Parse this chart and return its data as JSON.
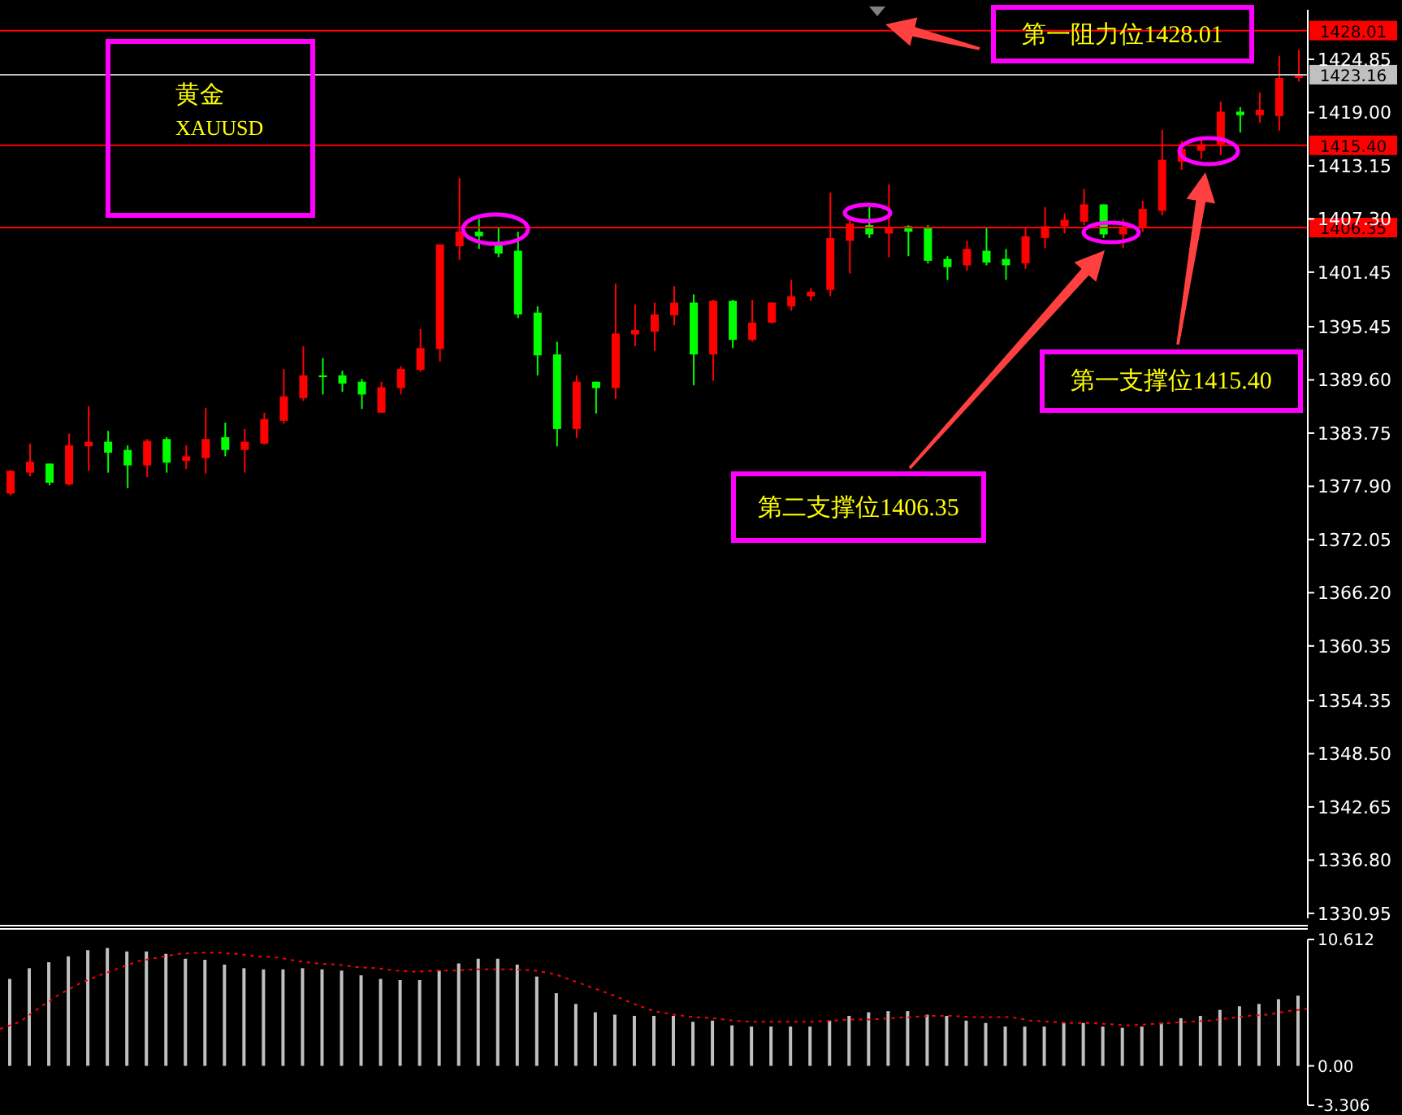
{
  "chart_data": [
    {
      "type": "candlestick",
      "categories": [
        null,
        null,
        null,
        null,
        null,
        null,
        null,
        null,
        null,
        null,
        null,
        null,
        null,
        null,
        null,
        null,
        null,
        null,
        null,
        null,
        null,
        null,
        null,
        null,
        null,
        null,
        null,
        null,
        null,
        null,
        null,
        null,
        null,
        null,
        null,
        null,
        null,
        null,
        null,
        null,
        null,
        null,
        null,
        null,
        null,
        null,
        null,
        null,
        null,
        null,
        null,
        null,
        null,
        null,
        null,
        null,
        null,
        null,
        null,
        null,
        null,
        null,
        null,
        null,
        null,
        null,
        null
      ],
      "ohlc": [
        [
          1377.1,
          1379.7,
          1376.9,
          1379.6
        ],
        [
          1379.4,
          1382.6,
          1379.0,
          1380.6
        ],
        [
          1380.4,
          1380.4,
          1378.0,
          1378.3
        ],
        [
          1378.1,
          1383.7,
          1378.0,
          1382.4
        ],
        [
          1382.3,
          1386.7,
          1379.6,
          1382.8
        ],
        [
          1382.8,
          1384.0,
          1379.4,
          1381.6
        ],
        [
          1381.9,
          1382.4,
          1377.7,
          1380.2
        ],
        [
          1380.2,
          1383.1,
          1378.9,
          1382.9
        ],
        [
          1383.1,
          1383.3,
          1379.4,
          1380.5
        ],
        [
          1380.7,
          1382.4,
          1379.8,
          1381.2
        ],
        [
          1381.0,
          1386.5,
          1379.3,
          1383.1
        ],
        [
          1383.3,
          1384.9,
          1381.2,
          1381.9
        ],
        [
          1381.9,
          1384.2,
          1379.4,
          1382.8
        ],
        [
          1382.6,
          1386.0,
          1382.5,
          1385.3
        ],
        [
          1385.1,
          1390.8,
          1384.8,
          1387.8
        ],
        [
          1387.6,
          1393.3,
          1387.3,
          1390.1
        ],
        [
          1390.1,
          1392.0,
          1388.0,
          1389.9
        ],
        [
          1390.1,
          1390.6,
          1388.3,
          1389.2
        ],
        [
          1389.4,
          1389.7,
          1386.4,
          1388.0
        ],
        [
          1386.0,
          1389.4,
          1386.0,
          1388.8
        ],
        [
          1388.7,
          1391.1,
          1388.0,
          1390.8
        ],
        [
          1390.7,
          1395.2,
          1390.5,
          1393.1
        ],
        [
          1393.0,
          1404.5,
          1391.6,
          1404.5
        ],
        [
          1404.3,
          1411.8,
          1402.8,
          1405.9
        ],
        [
          1405.9,
          1407.3,
          1404.0,
          1405.4
        ],
        [
          1404.6,
          1406.3,
          1403.1,
          1403.5
        ],
        [
          1403.8,
          1405.9,
          1396.4,
          1396.8
        ],
        [
          1397.0,
          1397.7,
          1390.1,
          1392.3
        ],
        [
          1392.4,
          1393.8,
          1382.3,
          1384.2
        ],
        [
          1384.2,
          1390.1,
          1383.2,
          1389.4
        ],
        [
          1389.4,
          1389.4,
          1385.9,
          1388.7
        ],
        [
          1388.7,
          1400.2,
          1387.5,
          1394.7
        ],
        [
          1394.6,
          1397.9,
          1393.3,
          1395.1
        ],
        [
          1394.9,
          1398.1,
          1392.8,
          1396.8
        ],
        [
          1396.7,
          1399.9,
          1395.6,
          1398.1
        ],
        [
          1398.1,
          1399.0,
          1389.0,
          1392.4
        ],
        [
          1392.4,
          1398.4,
          1389.5,
          1398.3
        ],
        [
          1398.3,
          1398.4,
          1393.1,
          1394.0
        ],
        [
          1394.0,
          1398.4,
          1393.8,
          1395.9
        ],
        [
          1395.9,
          1398.1,
          1395.8,
          1398.1
        ],
        [
          1397.7,
          1400.6,
          1397.2,
          1398.8
        ],
        [
          1398.8,
          1399.7,
          1398.3,
          1399.3
        ],
        [
          1399.5,
          1410.2,
          1398.8,
          1405.2
        ],
        [
          1404.9,
          1407.2,
          1401.3,
          1406.8
        ],
        [
          1406.6,
          1408.6,
          1405.2,
          1405.6
        ],
        [
          1405.7,
          1411.1,
          1403.1,
          1406.3
        ],
        [
          1406.5,
          1406.6,
          1403.2,
          1405.9
        ],
        [
          1406.3,
          1406.6,
          1402.4,
          1402.7
        ],
        [
          1402.9,
          1403.2,
          1400.6,
          1402.0
        ],
        [
          1402.2,
          1404.9,
          1401.6,
          1404.0
        ],
        [
          1403.8,
          1406.3,
          1402.2,
          1402.5
        ],
        [
          1402.9,
          1404.0,
          1400.6,
          1402.2
        ],
        [
          1402.4,
          1406.3,
          1401.8,
          1405.4
        ],
        [
          1405.2,
          1408.6,
          1404.1,
          1406.5
        ],
        [
          1406.5,
          1407.9,
          1405.7,
          1407.2
        ],
        [
          1407.0,
          1410.6,
          1406.6,
          1408.9
        ],
        [
          1408.9,
          1408.9,
          1405.2,
          1405.6
        ],
        [
          1405.6,
          1407.3,
          1404.1,
          1406.3
        ],
        [
          1406.3,
          1409.3,
          1405.9,
          1408.4
        ],
        [
          1408.2,
          1417.1,
          1407.7,
          1413.8
        ],
        [
          1413.6,
          1415.9,
          1412.7,
          1415.0
        ],
        [
          1414.8,
          1416.2,
          1413.9,
          1415.5
        ],
        [
          1415.5,
          1420.2,
          1414.3,
          1419.1
        ],
        [
          1419.1,
          1419.6,
          1416.8,
          1418.7
        ],
        [
          1418.7,
          1421.2,
          1417.9,
          1419.3
        ],
        [
          1418.6,
          1425.2,
          1417.0,
          1422.8
        ],
        [
          1422.8,
          1425.9,
          1422.4,
          1423.1
        ]
      ],
      "colors": [
        "#ff0000",
        "#ff0000",
        "#00ff00",
        "#ff0000",
        "#ff0000",
        "#00ff00",
        "#00ff00",
        "#ff0000",
        "#00ff00",
        "#ff0000",
        "#ff0000",
        "#00ff00",
        "#ff0000",
        "#ff0000",
        "#ff0000",
        "#ff0000",
        "#00ff00",
        "#00ff00",
        "#00ff00",
        "#ff0000",
        "#ff0000",
        "#ff0000",
        "#ff0000",
        "#ff0000",
        "#00ff00",
        "#00ff00",
        "#00ff00",
        "#00ff00",
        "#00ff00",
        "#ff0000",
        "#00ff00",
        "#ff0000",
        "#ff0000",
        "#ff0000",
        "#ff0000",
        "#00ff00",
        "#ff0000",
        "#00ff00",
        "#ff0000",
        "#ff0000",
        "#ff0000",
        "#ff0000",
        "#ff0000",
        "#ff0000",
        "#00ff00",
        "#ff0000",
        "#00ff00",
        "#00ff00",
        "#00ff00",
        "#ff0000",
        "#00ff00",
        "#00ff00",
        "#ff0000",
        "#ff0000",
        "#ff0000",
        "#ff0000",
        "#00ff00",
        "#ff0000",
        "#ff0000",
        "#ff0000",
        "#ff0000",
        "#ff0000",
        "#ff0000",
        "#00ff00",
        "#ff0000",
        "#ff0000",
        "#ff0000"
      ],
      "ylim": [
        1330.4,
        1430.3
      ],
      "yticks": [
        1424.85,
        {
          "value": 1419,
          "label": "1419.00"
        },
        1413.15,
        {
          "value": 1407.3,
          "label": "1407.30"
        },
        1401.45,
        1395.45,
        {
          "value": 1389.6,
          "label": "1389.60"
        },
        1383.75,
        {
          "value": 1377.9,
          "label": "1377.90"
        },
        1372.05,
        {
          "value": 1366.2,
          "label": "1366.20"
        },
        1360.35,
        1354.35,
        {
          "value": 1348.5,
          "label": "1348.50"
        },
        1342.65,
        {
          "value": 1336.8,
          "label": "1336.80"
        },
        1330.95
      ],
      "ref_lines": [
        {
          "axis": "y",
          "value": 1428.01,
          "label": "1428.01",
          "color": "#ff0000"
        },
        {
          "axis": "y",
          "value": 1423.16,
          "label": "1423.16",
          "color": "#c0c0c0"
        },
        {
          "axis": "y",
          "value": 1415.4,
          "label": "1415.40",
          "color": "#ff0000"
        },
        {
          "axis": "y",
          "value": 1406.35,
          "label": "1406.35",
          "color": "#ff0000"
        }
      ],
      "annotations": [
        "黄金",
        "XAUUSD",
        "第一阻力位1428.01",
        "第一支撑位1415.40",
        "第二支撑位1406.35"
      ],
      "tick_labels": "y"
    },
    {
      "type": "bar",
      "categories": [
        null,
        null,
        null,
        null,
        null,
        null,
        null,
        null,
        null,
        null,
        null,
        null,
        null,
        null,
        null,
        null,
        null,
        null,
        null,
        null,
        null,
        null,
        null,
        null,
        null,
        null,
        null,
        null,
        null,
        null,
        null,
        null,
        null,
        null,
        null,
        null,
        null,
        null,
        null,
        null,
        null,
        null,
        null,
        null,
        null,
        null,
        null,
        null,
        null,
        null,
        null,
        null,
        null,
        null,
        null,
        null,
        null,
        null,
        null,
        null,
        null,
        null,
        null,
        null,
        null,
        null,
        null
      ],
      "series": [
        {
          "type": "bar",
          "color": "#c0c0c0",
          "values": [
            7.3,
            8.2,
            8.7,
            9.2,
            9.7,
            9.9,
            9.6,
            9.6,
            9.4,
            9.0,
            8.9,
            8.5,
            8.2,
            8.1,
            8.1,
            8.2,
            8.1,
            8.0,
            7.6,
            7.3,
            7.2,
            7.2,
            8.0,
            8.6,
            9.0,
            9.0,
            8.5,
            7.5,
            6.1,
            5.2,
            4.5,
            4.3,
            4.2,
            4.2,
            4.2,
            3.7,
            3.8,
            3.4,
            3.3,
            3.3,
            3.3,
            3.3,
            3.8,
            4.2,
            4.5,
            4.6,
            4.6,
            4.3,
            4.2,
            3.8,
            3.6,
            3.3,
            3.3,
            3.3,
            3.6,
            3.6,
            3.3,
            3.2,
            3.3,
            3.6,
            4.0,
            4.2,
            4.7,
            5.0,
            5.2,
            5.6,
            5.9
          ]
        }
      ],
      "ylim": [
        -3.306,
        10.612
      ],
      "yticks": [
        10.612,
        {
          "value": 0,
          "label": "0.00"
        },
        -3.306
      ],
      "tick_labels": "y"
    },
    {
      "type": "line",
      "categories": [
        null,
        null,
        null,
        null,
        null,
        null,
        null,
        null,
        null,
        null,
        null,
        null,
        null,
        null,
        null,
        null,
        null,
        null,
        null,
        null,
        null,
        null,
        null,
        null,
        null,
        null,
        null,
        null,
        null,
        null,
        null,
        null,
        null,
        null,
        null,
        null,
        null,
        null,
        null,
        null,
        null,
        null,
        null,
        null,
        null,
        null,
        null,
        null,
        null,
        null,
        null,
        null,
        null,
        null,
        null,
        null,
        null,
        null,
        null,
        null,
        null,
        null,
        null,
        null,
        null,
        null,
        null
      ],
      "color": "#ff0000",
      "line_style": "dotted",
      "values": [
        3.1,
        3.7,
        4.9,
        6.0,
        6.9,
        7.6,
        8.2,
        8.8,
        9.1,
        9.4,
        9.5,
        9.5,
        9.4,
        9.2,
        9.1,
        8.8,
        8.6,
        8.5,
        8.3,
        8.2,
        8.0,
        7.9,
        8.0,
        8.0,
        8.1,
        8.1,
        8.1,
        8.0,
        7.7,
        7.1,
        6.5,
        5.9,
        5.2,
        4.6,
        4.3,
        4.1,
        4.0,
        3.8,
        3.7,
        3.7,
        3.7,
        3.7,
        3.8,
        3.9,
        3.9,
        4.0,
        4.1,
        4.2,
        4.2,
        4.1,
        4.1,
        4.1,
        3.8,
        3.7,
        3.6,
        3.6,
        3.5,
        3.4,
        3.5,
        3.6,
        3.7,
        3.8,
        4.0,
        4.2,
        4.3,
        4.6,
        4.8
      ],
      "ylim": [
        -3.306,
        10.612
      ],
      "tick_labels": false
    }
  ]
}
